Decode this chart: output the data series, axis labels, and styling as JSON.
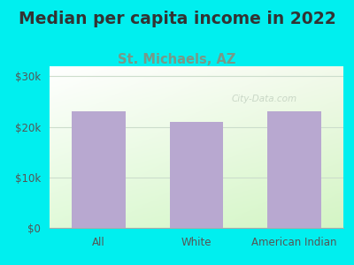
{
  "title": "Median per capita income in 2022",
  "subtitle": "St. Michaels, AZ",
  "categories": [
    "All",
    "White",
    "American Indian"
  ],
  "values": [
    23000,
    21000,
    23000
  ],
  "bar_color": "#b8a8d0",
  "background_color": "#00efef",
  "title_color": "#333333",
  "subtitle_color": "#779988",
  "tick_label_color": "#555555",
  "yticks": [
    0,
    10000,
    20000,
    30000
  ],
  "ytick_labels": [
    "$0",
    "$10k",
    "$20k",
    "$30k"
  ],
  "ylim": [
    0,
    32000
  ],
  "watermark": "City-Data.com",
  "title_fontsize": 13.5,
  "subtitle_fontsize": 10.5,
  "grid_color": "#ccddcc"
}
